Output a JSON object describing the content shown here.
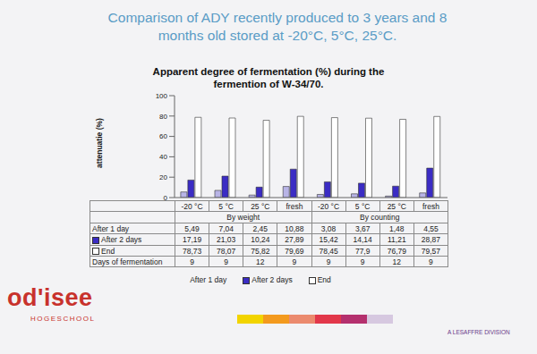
{
  "chart_data": {
    "type": "bar",
    "title": "Comparison of ADY recently produced to 3 years and 8 months old stored at -20°C, 5°C, 25°C.",
    "subtitle": "Apparent degree of fermentation (%) during the fermention of W-34/70.",
    "y_label": "attenuatie (%)",
    "categories": [
      "-20 °C",
      "5 °C",
      "25 °C",
      "fresh",
      "-20 °C",
      "5 °C",
      "25 °C",
      "fresh"
    ],
    "groups": [
      "By weight",
      "By counting"
    ],
    "series": [
      {
        "name": "After 1 day",
        "color": "#b8b4e6",
        "values": [
          5.49,
          7.04,
          2.45,
          10.88,
          3.08,
          3.67,
          1.48,
          4.55
        ],
        "value_labels": [
          "5,49",
          "7,04",
          "2,45",
          "10,88",
          "3,08",
          "3,67",
          "1,48",
          "4,55"
        ]
      },
      {
        "name": "After 2 days",
        "color": "#3b2cc4",
        "values": [
          17.19,
          21.03,
          10.24,
          27.89,
          15.42,
          14.14,
          11.21,
          28.87
        ],
        "value_labels": [
          "17,19",
          "21,03",
          "10,24",
          "27,89",
          "15,42",
          "14,14",
          "11,21",
          "28,87"
        ]
      },
      {
        "name": "End",
        "color": "#ffffff",
        "values": [
          78.73,
          78.07,
          75.82,
          79.69,
          78.45,
          77.9,
          76.79,
          79.57
        ],
        "value_labels": [
          "78,73",
          "78,07",
          "75,82",
          "79,69",
          "78,45",
          "77,9",
          "76,79",
          "79,57"
        ]
      }
    ],
    "days_of_fermentation": {
      "label": "Days of fermentation",
      "values": [
        9,
        9,
        12,
        9,
        9,
        9,
        12,
        9
      ]
    },
    "ylim": [
      0,
      100
    ],
    "yticks": [
      0,
      20,
      40,
      60,
      80,
      100
    ],
    "grid": false,
    "legend": "bottom",
    "annotations": [
      "od'isee",
      "HOGESCHOOL",
      "A LESAFFRE DIVISION"
    ]
  }
}
